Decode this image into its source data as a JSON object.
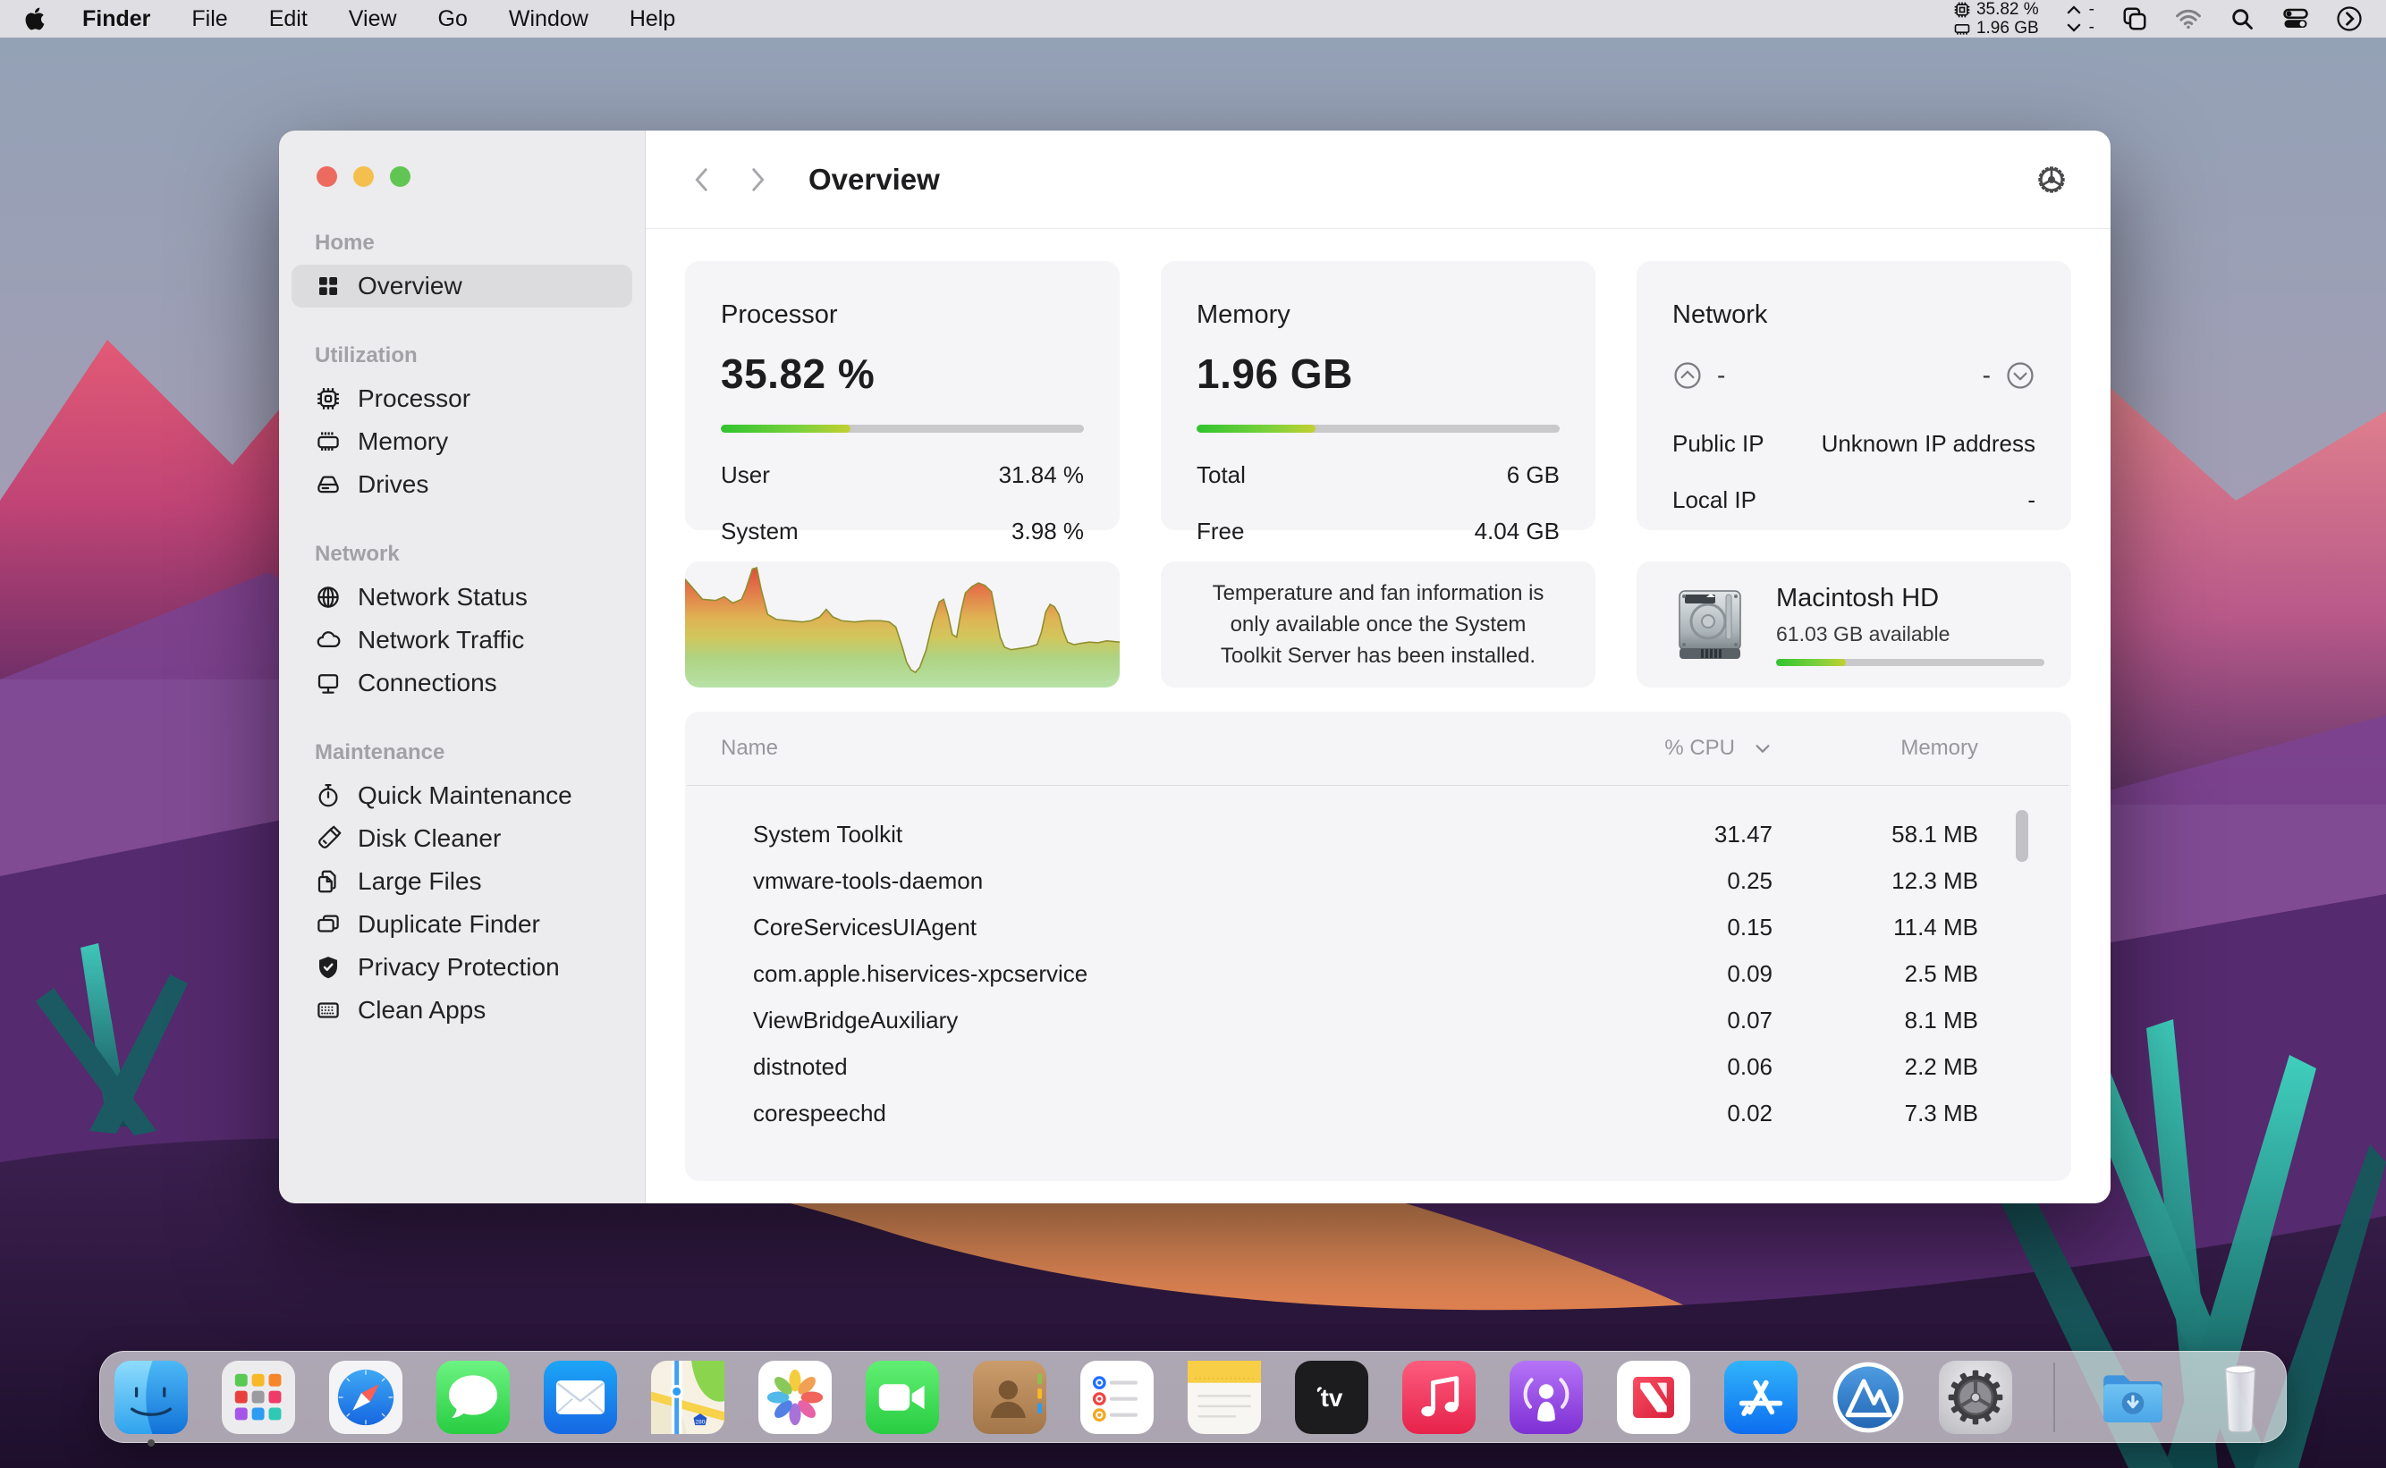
{
  "menu_bar": {
    "apple_icon": "apple-logo",
    "items": [
      "Finder",
      "File",
      "Edit",
      "View",
      "Go",
      "Window",
      "Help"
    ],
    "status": {
      "cpu": "35.82 %",
      "memory": "1.96 GB",
      "upload": "-",
      "download": "-"
    },
    "status_icons": [
      "cpu-chip-icon",
      "memory-chip-icon",
      "up-chevron-icon",
      "down-chevron-icon"
    ],
    "tray_icons": [
      "stacked-windows-icon",
      "wifi-icon",
      "search-icon",
      "control-center-icon",
      "circle-chevron-icon"
    ]
  },
  "window": {
    "nav": {
      "title": "Overview",
      "back_icon": "chevron-left",
      "forward_icon": "chevron-right",
      "settings_icon": "gear"
    },
    "sidebar": {
      "sections": [
        {
          "label": "Home",
          "items": [
            {
              "label": "Overview",
              "icon": "grid-icon",
              "selected": true
            }
          ]
        },
        {
          "label": "Utilization",
          "items": [
            {
              "label": "Processor",
              "icon": "cpu-chip-icon"
            },
            {
              "label": "Memory",
              "icon": "memory-chip-icon"
            },
            {
              "label": "Drives",
              "icon": "drive-icon"
            }
          ]
        },
        {
          "label": "Network",
          "items": [
            {
              "label": "Network Status",
              "icon": "globe-icon"
            },
            {
              "label": "Network Traffic",
              "icon": "cloud-icon"
            },
            {
              "label": "Connections",
              "icon": "monitor-icon"
            }
          ]
        },
        {
          "label": "Maintenance",
          "items": [
            {
              "label": "Quick Maintenance",
              "icon": "stopwatch-icon"
            },
            {
              "label": "Disk Cleaner",
              "icon": "paintbrush-icon"
            },
            {
              "label": "Large Files",
              "icon": "documents-icon"
            },
            {
              "label": "Duplicate Finder",
              "icon": "copy-icon"
            },
            {
              "label": "Privacy Protection",
              "icon": "shield-check-icon"
            },
            {
              "label": "Clean Apps",
              "icon": "app-grid-icon"
            }
          ]
        }
      ]
    },
    "cards": {
      "processor": {
        "title": "Processor",
        "value": "35.82 %",
        "progress_percent": 35.8,
        "rows": [
          {
            "label": "User",
            "value": "31.84 %"
          },
          {
            "label": "System",
            "value": "3.98 %"
          }
        ]
      },
      "memory": {
        "title": "Memory",
        "value": "1.96 GB",
        "progress_percent": 32.7,
        "rows": [
          {
            "label": "Total",
            "value": "6 GB"
          },
          {
            "label": "Free",
            "value": "4.04 GB"
          }
        ]
      },
      "network": {
        "title": "Network",
        "upload_value": "-",
        "download_value": "-",
        "rows": [
          {
            "label": "Public IP",
            "value": "Unknown IP address"
          },
          {
            "label": "Local IP",
            "value": "-"
          }
        ]
      },
      "temperature_note": "Temperature and fan information is only available once the System Toolkit Server has been installed.",
      "disk": {
        "name": "Macintosh HD",
        "available": "61.03 GB available",
        "progress_percent": 26
      }
    },
    "process_table": {
      "columns": {
        "name": "Name",
        "cpu": "% CPU",
        "memory": "Memory"
      },
      "sorted_by": "% CPU",
      "rows": [
        {
          "name": "System Toolkit",
          "cpu": "31.47",
          "memory": "58.1 MB"
        },
        {
          "name": "vmware-tools-daemon",
          "cpu": "0.25",
          "memory": "12.3 MB"
        },
        {
          "name": "CoreServicesUIAgent",
          "cpu": "0.15",
          "memory": "11.4 MB"
        },
        {
          "name": "com.apple.hiservices-xpcservice",
          "cpu": "0.09",
          "memory": "2.5 MB"
        },
        {
          "name": "ViewBridgeAuxiliary",
          "cpu": "0.07",
          "memory": "8.1 MB"
        },
        {
          "name": "distnoted",
          "cpu": "0.06",
          "memory": "2.2 MB"
        },
        {
          "name": "corespeechd",
          "cpu": "0.02",
          "memory": "7.3 MB"
        }
      ]
    }
  },
  "chart_data": {
    "type": "area",
    "title": "CPU usage history (unlabeled sparkline)",
    "ylim": [
      0,
      100
    ],
    "grid": false,
    "points_percent": [
      [
        0,
        86
      ],
      [
        2,
        78
      ],
      [
        4,
        70
      ],
      [
        7,
        69
      ],
      [
        9,
        72
      ],
      [
        11,
        67
      ],
      [
        13,
        70
      ],
      [
        14,
        78
      ],
      [
        15.5,
        94
      ],
      [
        16.5,
        95
      ],
      [
        17.5,
        78
      ],
      [
        19,
        58
      ],
      [
        21,
        54
      ],
      [
        24,
        53
      ],
      [
        27,
        52
      ],
      [
        29,
        53
      ],
      [
        31,
        56
      ],
      [
        32.5,
        62
      ],
      [
        34,
        56
      ],
      [
        36,
        53
      ],
      [
        39,
        52
      ],
      [
        42,
        53
      ],
      [
        45,
        53
      ],
      [
        47,
        52
      ],
      [
        48.5,
        48
      ],
      [
        50,
        32
      ],
      [
        51,
        20
      ],
      [
        52,
        14
      ],
      [
        53,
        12
      ],
      [
        54,
        16
      ],
      [
        55.5,
        30
      ],
      [
        57,
        52
      ],
      [
        58.5,
        68
      ],
      [
        59.5,
        70
      ],
      [
        60.5,
        58
      ],
      [
        61.5,
        42
      ],
      [
        62.5,
        40
      ],
      [
        63.5,
        60
      ],
      [
        64.5,
        75
      ],
      [
        66,
        80
      ],
      [
        67.5,
        83
      ],
      [
        69,
        81
      ],
      [
        70.5,
        76
      ],
      [
        71.5,
        58
      ],
      [
        72.5,
        40
      ],
      [
        73.5,
        32
      ],
      [
        75,
        30
      ],
      [
        77,
        31
      ],
      [
        79,
        32
      ],
      [
        81,
        34
      ],
      [
        82,
        44
      ],
      [
        83,
        60
      ],
      [
        84,
        66
      ],
      [
        85,
        64
      ],
      [
        86,
        58
      ],
      [
        87,
        45
      ],
      [
        88,
        36
      ],
      [
        89.5,
        34
      ],
      [
        91,
        35
      ],
      [
        93,
        36
      ],
      [
        95,
        35.5
      ],
      [
        97,
        37
      ],
      [
        100,
        36
      ]
    ]
  },
  "dock": {
    "items": [
      "finder",
      "launchpad",
      "safari",
      "messages",
      "mail",
      "maps",
      "photos",
      "facetime",
      "contacts",
      "reminders",
      "notes",
      "apple-tv",
      "music",
      "podcasts",
      "news",
      "app-store",
      "system-toolkit",
      "system-preferences",
      "downloads",
      "trash"
    ],
    "running_indicator_on": "finder"
  }
}
